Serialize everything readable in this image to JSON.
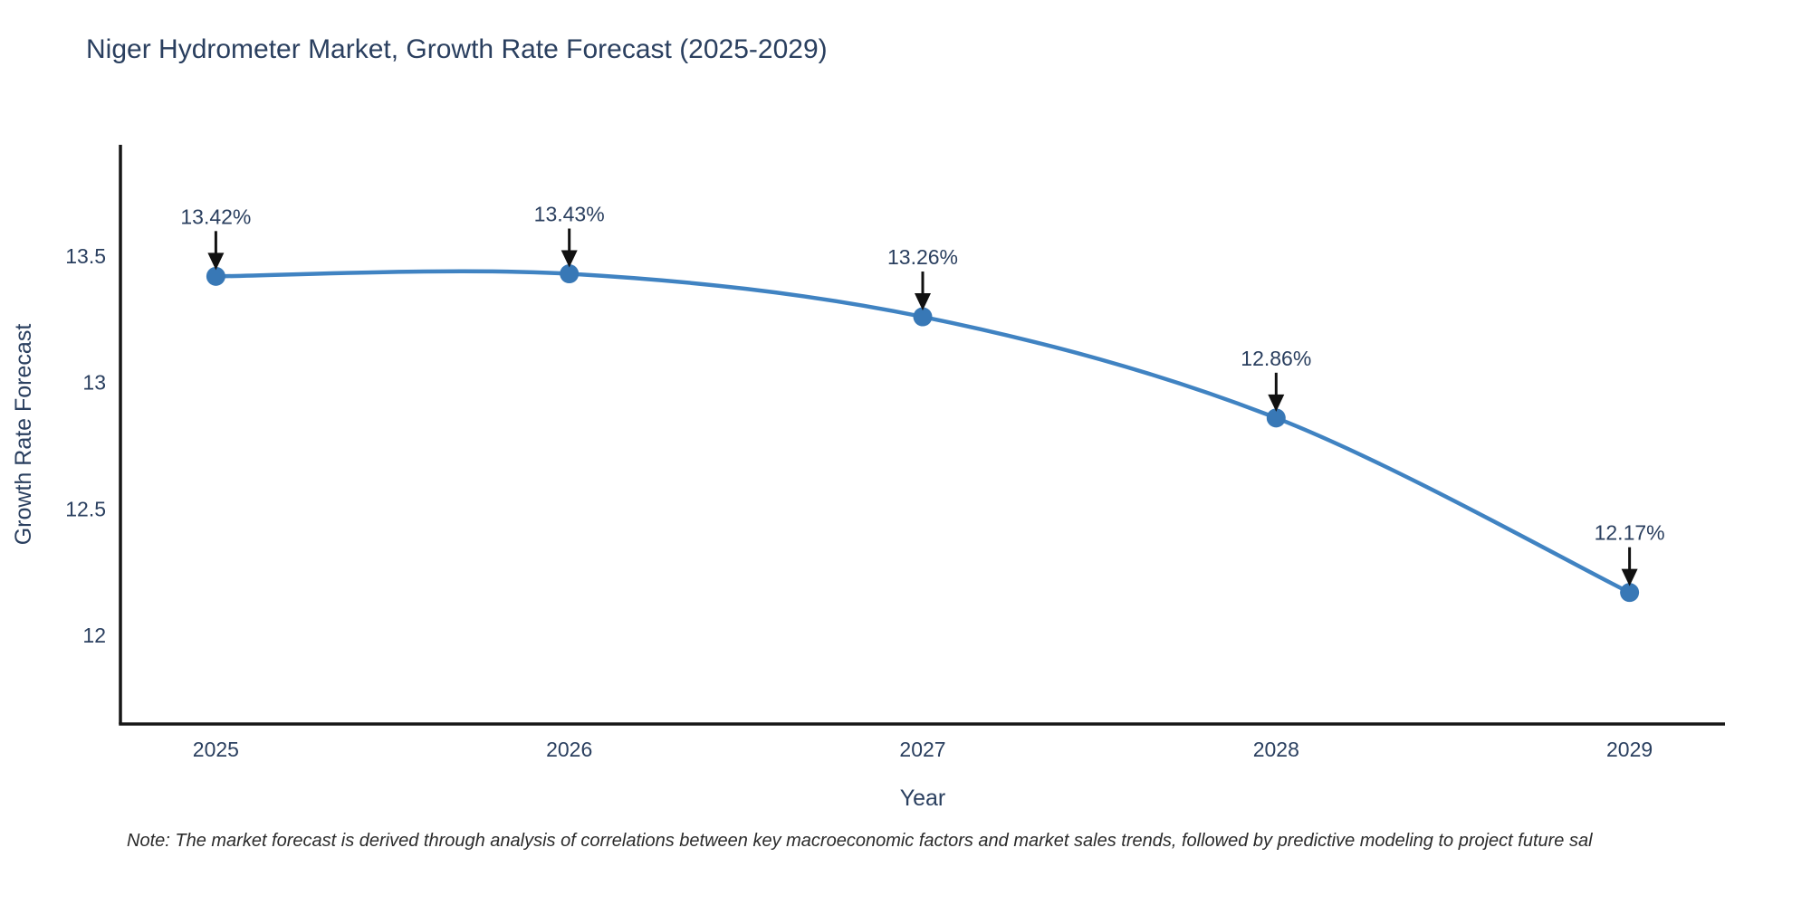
{
  "page": {
    "note": "Note: The market forecast is derived through analysis of correlations between key macroeconomic factors and market sales trends, followed by predictive modeling to project future sal"
  },
  "chart_data": {
    "type": "line",
    "title": "Niger Hydrometer Market, Growth Rate Forecast (2025-2029)",
    "x": [
      2025,
      2026,
      2027,
      2028,
      2029
    ],
    "x_tick_labels": [
      "2025",
      "2026",
      "2027",
      "2028",
      "2029"
    ],
    "series": [
      {
        "name": "Growth Rate Forecast",
        "values": [
          13.42,
          13.43,
          13.26,
          12.86,
          12.17
        ]
      }
    ],
    "point_labels": [
      "13.42%",
      "13.43%",
      "13.26%",
      "12.86%",
      "12.17%"
    ],
    "xlabel": "Year",
    "ylabel": "Growth Rate Forecast",
    "y_ticks": [
      13.5,
      13,
      12.5,
      12
    ],
    "ylim": [
      11.65,
      13.94
    ],
    "xlim": [
      2024.73,
      2029.27
    ],
    "grid": false,
    "legend": "none",
    "curve": "spline",
    "colors": {
      "line": "#4083c2",
      "marker": "#3878b6",
      "arrow": "#111111",
      "axis": "#161616",
      "text": "#2a3f5f",
      "annotation": "#2a3f5f",
      "note": "#2b2b2b",
      "background": "#ffffff"
    }
  }
}
